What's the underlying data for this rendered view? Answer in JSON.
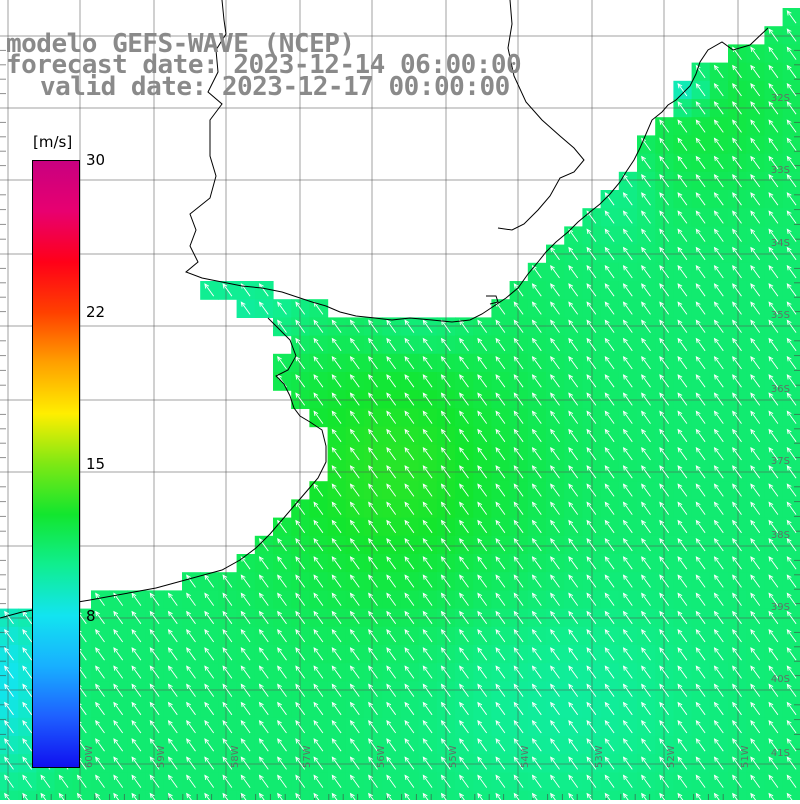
{
  "header": {
    "title_line1": "modelo GEFS-WAVE (NCEP)",
    "title_line2": "forecast date: 2023-12-14 06:00:00",
    "title_line3": "valid date: 2023-12-17 00:00:00"
  },
  "colorbar": {
    "unit": "[m/s]",
    "min": 0,
    "max": 30,
    "ticks": [
      {
        "value": 30,
        "label": "30"
      },
      {
        "value": 22,
        "label": "22"
      },
      {
        "value": 15,
        "label": "15"
      },
      {
        "value": 8,
        "label": "8"
      }
    ],
    "stops": [
      "#1010f0",
      "#1e60ff",
      "#18b0ff",
      "#12e4f0",
      "#10ee90",
      "#12e62e",
      "#7ee814",
      "#ffee00",
      "#ffa000",
      "#ff4000",
      "#ff0018",
      "#e80070",
      "#c80080"
    ]
  },
  "latitude_labels": [
    "32S",
    "33S",
    "34S",
    "35S",
    "36S",
    "37S",
    "38S",
    "39S",
    "40S",
    "41S"
  ],
  "longitude_labels": [
    "60W",
    "59W",
    "58W",
    "57W",
    "56W",
    "55W",
    "54W",
    "53W",
    "52W",
    "51W"
  ],
  "field": {
    "wind_direction": "southwest",
    "speed_ms_typical": 12
  }
}
